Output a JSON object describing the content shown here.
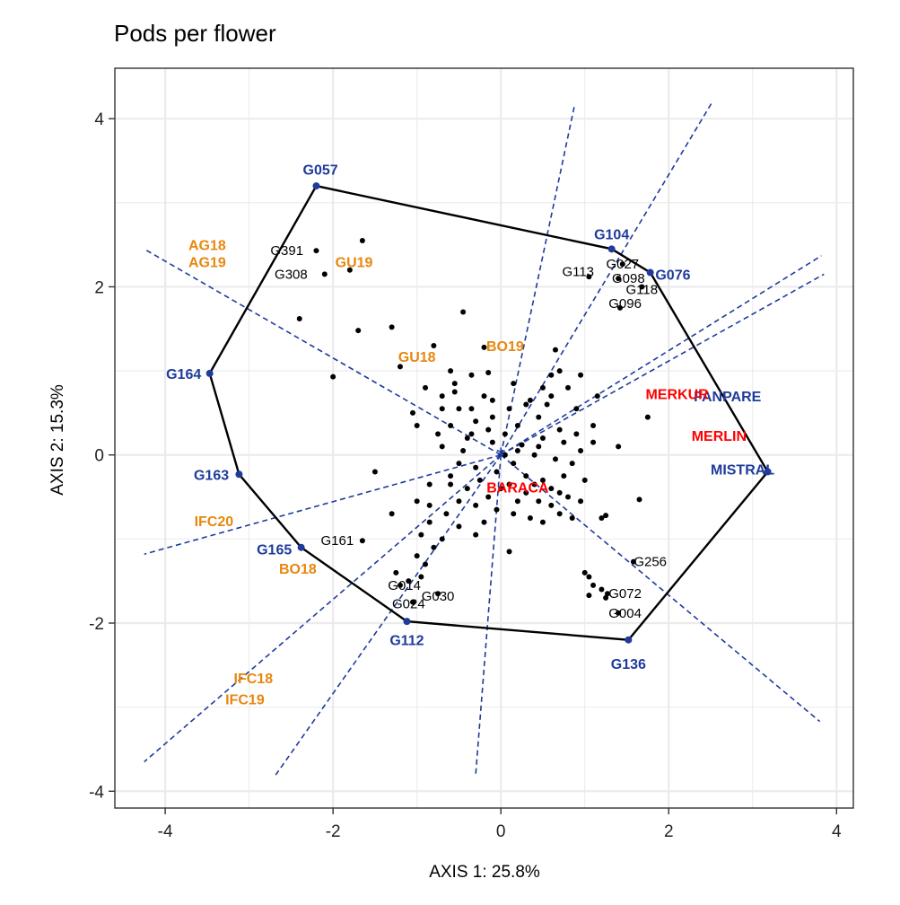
{
  "chart_data": {
    "type": "scatter",
    "title": "Pods per flower",
    "xlabel": "AXIS 1: 25.8%",
    "ylabel": "AXIS 2: 15.3%",
    "xlim": [
      -4.6,
      4.2
    ],
    "ylim": [
      -4.2,
      4.6
    ],
    "x_ticks": [
      -4,
      -2,
      0,
      2,
      4
    ],
    "y_ticks": [
      -4,
      -2,
      0,
      2,
      4
    ],
    "x_tick_labels": [
      "-4",
      "-2",
      "0",
      "2",
      "4"
    ],
    "y_tick_labels": [
      "-4",
      "-2",
      "0",
      "2",
      "4"
    ],
    "grid": true,
    "colors": {
      "vertex": "#1f3b9b",
      "environment": "#e8870e",
      "highlight_genotype": "#ff0000",
      "point": "#000000",
      "rays": "#1f3b9b"
    },
    "origin_marker": [
      0,
      0
    ],
    "hull": [
      [
        -2.2,
        3.2
      ],
      [
        1.32,
        2.45
      ],
      [
        1.78,
        2.17
      ],
      [
        3.18,
        -0.2
      ],
      [
        1.52,
        -2.2
      ],
      [
        -1.12,
        -1.98
      ],
      [
        -2.38,
        -1.1
      ],
      [
        -3.12,
        -0.23
      ],
      [
        -3.47,
        0.97
      ]
    ],
    "rays": [
      [
        [
          0,
          0
        ],
        [
          -4.25,
          2.45
        ]
      ],
      [
        [
          0,
          0
        ],
        [
          -4.25,
          -1.18
        ]
      ],
      [
        [
          0,
          0
        ],
        [
          -4.25,
          -3.65
        ]
      ],
      [
        [
          0,
          0
        ],
        [
          -2.7,
          -3.83
        ]
      ],
      [
        [
          0,
          0
        ],
        [
          -0.3,
          -3.8
        ]
      ],
      [
        [
          0,
          0
        ],
        [
          0.88,
          4.17
        ]
      ],
      [
        [
          0,
          0
        ],
        [
          2.52,
          4.2
        ]
      ],
      [
        [
          0,
          0
        ],
        [
          3.82,
          2.37
        ]
      ],
      [
        [
          0,
          0
        ],
        [
          3.85,
          2.15
        ]
      ],
      [
        [
          0,
          0
        ],
        [
          3.8,
          -3.17
        ]
      ]
    ],
    "vertex_genotypes": [
      {
        "name": "G057",
        "x": -2.2,
        "y": 3.2,
        "lx": -2.15,
        "ly": 3.4
      },
      {
        "name": "G104",
        "x": 1.32,
        "y": 2.45,
        "lx": 1.32,
        "ly": 2.63
      },
      {
        "name": "G076",
        "x": 1.78,
        "y": 2.17,
        "lx": 2.05,
        "ly": 2.15
      },
      {
        "name": "G164",
        "x": -3.47,
        "y": 0.97,
        "lx": -3.78,
        "ly": 0.97
      },
      {
        "name": "G163",
        "x": -3.12,
        "y": -0.23,
        "lx": -3.45,
        "ly": -0.23
      },
      {
        "name": "G165",
        "x": -2.38,
        "y": -1.1,
        "lx": -2.7,
        "ly": -1.12
      },
      {
        "name": "G112",
        "x": -1.12,
        "y": -1.98,
        "lx": -1.12,
        "ly": -2.2
      },
      {
        "name": "G136",
        "x": 1.52,
        "y": -2.2,
        "lx": 1.52,
        "ly": -2.48
      },
      {
        "name": "MISTRAL",
        "x": 3.18,
        "y": -0.2,
        "lx": 2.88,
        "ly": -0.17
      },
      {
        "name": "FANPARE",
        "x": 2.7,
        "y": 0.7,
        "lx": 2.7,
        "ly": 0.7
      }
    ],
    "environments": [
      {
        "name": "AG18",
        "x": -3.5,
        "y": 2.5
      },
      {
        "name": "AG19",
        "x": -3.5,
        "y": 2.3
      },
      {
        "name": "GU19",
        "x": -1.75,
        "y": 2.3
      },
      {
        "name": "GU18",
        "x": -1.0,
        "y": 1.17
      },
      {
        "name": "BO19",
        "x": 0.05,
        "y": 1.3
      },
      {
        "name": "IFC20",
        "x": -3.42,
        "y": -0.78
      },
      {
        "name": "BO18",
        "x": -2.42,
        "y": -1.35
      },
      {
        "name": "IFC18",
        "x": -2.95,
        "y": -2.65
      },
      {
        "name": "IFC19",
        "x": -3.05,
        "y": -2.9
      }
    ],
    "highlight_genotypes": [
      {
        "name": "MERKUR",
        "x": 2.1,
        "y": 0.73
      },
      {
        "name": "MERLIN",
        "x": 2.6,
        "y": 0.23
      },
      {
        "name": "BARACA",
        "x": 0.2,
        "y": -0.38
      }
    ],
    "labeled_points": [
      {
        "name": "G391",
        "x": -2.2,
        "y": 2.43,
        "lx": -2.55,
        "ly": 2.43
      },
      {
        "name": "G308",
        "x": -2.1,
        "y": 2.15,
        "lx": -2.5,
        "ly": 2.15
      },
      {
        "name": "G113",
        "x": 1.05,
        "y": 2.12,
        "lx": 0.92,
        "ly": 2.18
      },
      {
        "name": "G027",
        "x": 1.45,
        "y": 2.27,
        "lx": 1.45,
        "ly": 2.27
      },
      {
        "name": "G098",
        "x": 1.4,
        "y": 2.1,
        "lx": 1.52,
        "ly": 2.1
      },
      {
        "name": "G118",
        "x": 1.68,
        "y": 2.0,
        "lx": 1.68,
        "ly": 1.97
      },
      {
        "name": "G096",
        "x": 1.42,
        "y": 1.75,
        "lx": 1.48,
        "ly": 1.8
      },
      {
        "name": "G161",
        "x": -1.65,
        "y": -1.02,
        "lx": -1.95,
        "ly": -1.02
      },
      {
        "name": "G256",
        "x": 1.58,
        "y": -1.27,
        "lx": 1.78,
        "ly": -1.27
      },
      {
        "name": "G014",
        "x": -1.2,
        "y": -1.55,
        "lx": -1.15,
        "ly": -1.55
      },
      {
        "name": "G030",
        "x": -0.75,
        "y": -1.65,
        "lx": -0.75,
        "ly": -1.68
      },
      {
        "name": "G024",
        "x": -1.05,
        "y": -1.75,
        "lx": -1.1,
        "ly": -1.77
      },
      {
        "name": "G072",
        "x": 1.27,
        "y": -1.65,
        "lx": 1.48,
        "ly": -1.65
      },
      {
        "name": "G004",
        "x": 1.4,
        "y": -1.88,
        "lx": 1.48,
        "ly": -1.88
      }
    ],
    "points": [
      [
        -1.65,
        2.55
      ],
      [
        -1.8,
        2.2
      ],
      [
        -2.4,
        1.62
      ],
      [
        -1.7,
        1.48
      ],
      [
        -1.3,
        1.52
      ],
      [
        -1.2,
        1.05
      ],
      [
        -2.0,
        0.93
      ],
      [
        -0.8,
        1.3
      ],
      [
        -0.45,
        1.7
      ],
      [
        -0.2,
        1.28
      ],
      [
        -0.6,
        1.0
      ],
      [
        -0.35,
        0.95
      ],
      [
        -0.15,
        0.98
      ],
      [
        -0.2,
        0.7
      ],
      [
        -0.5,
        0.55
      ],
      [
        -0.7,
        0.55
      ],
      [
        -1.0,
        0.35
      ],
      [
        -0.6,
        0.35
      ],
      [
        -0.3,
        0.4
      ],
      [
        -0.1,
        0.45
      ],
      [
        -0.4,
        0.2
      ],
      [
        -0.7,
        0.1
      ],
      [
        -0.5,
        -0.1
      ],
      [
        -0.3,
        -0.15
      ],
      [
        -0.1,
        0.15
      ],
      [
        0.1,
        0.55
      ],
      [
        0.2,
        0.35
      ],
      [
        0.5,
        0.8
      ],
      [
        0.6,
        0.95
      ],
      [
        0.65,
        1.25
      ],
      [
        0.8,
        0.8
      ],
      [
        0.9,
        0.55
      ],
      [
        1.1,
        0.35
      ],
      [
        0.7,
        0.3
      ],
      [
        0.5,
        0.2
      ],
      [
        0.4,
        0.0
      ],
      [
        0.15,
        -0.1
      ],
      [
        0.3,
        -0.25
      ],
      [
        0.5,
        -0.3
      ],
      [
        0.6,
        -0.4
      ],
      [
        0.75,
        -0.25
      ],
      [
        0.8,
        -0.5
      ],
      [
        0.95,
        -0.55
      ],
      [
        0.7,
        -0.7
      ],
      [
        0.5,
        -0.8
      ],
      [
        0.35,
        -0.75
      ],
      [
        0.2,
        -0.55
      ],
      [
        0.0,
        -0.4
      ],
      [
        -0.15,
        -0.5
      ],
      [
        -0.3,
        -0.6
      ],
      [
        -0.5,
        -0.55
      ],
      [
        -0.65,
        -0.7
      ],
      [
        -0.85,
        -0.8
      ],
      [
        -0.95,
        -0.95
      ],
      [
        -0.7,
        -1.0
      ],
      [
        -0.5,
        -0.85
      ],
      [
        -0.3,
        -0.95
      ],
      [
        -1.0,
        -1.2
      ],
      [
        -0.8,
        -1.1
      ],
      [
        -0.9,
        -1.3
      ],
      [
        -1.3,
        -0.7
      ],
      [
        -1.5,
        -0.2
      ],
      [
        -1.25,
        -1.4
      ],
      [
        -1.1,
        -1.5
      ],
      [
        -0.95,
        -1.45
      ],
      [
        0.1,
        -1.15
      ],
      [
        1.2,
        -0.75
      ],
      [
        1.25,
        -0.72
      ],
      [
        1.65,
        -0.53
      ],
      [
        1.75,
        0.45
      ],
      [
        1.4,
        0.1
      ],
      [
        1.0,
        -1.4
      ],
      [
        1.05,
        -1.45
      ],
      [
        1.1,
        -1.55
      ],
      [
        1.2,
        -1.6
      ],
      [
        1.05,
        -1.67
      ],
      [
        1.25,
        -1.7
      ],
      [
        -0.25,
        -0.3
      ],
      [
        0.05,
        0.25
      ],
      [
        0.25,
        0.12
      ],
      [
        0.45,
        0.45
      ],
      [
        0.35,
        0.65
      ],
      [
        0.15,
        0.85
      ],
      [
        0.55,
        0.6
      ],
      [
        0.75,
        0.15
      ],
      [
        0.95,
        0.05
      ],
      [
        0.85,
        -0.1
      ],
      [
        0.65,
        -0.05
      ],
      [
        -0.45,
        0.05
      ],
      [
        -0.6,
        -0.25
      ],
      [
        -0.85,
        -0.35
      ],
      [
        -0.75,
        0.25
      ],
      [
        -0.9,
        0.8
      ],
      [
        -1.05,
        0.5
      ],
      [
        -0.55,
        0.75
      ],
      [
        -0.7,
        0.7
      ],
      [
        0.05,
        0.0
      ],
      [
        -0.05,
        -0.2
      ],
      [
        0.1,
        -0.35
      ],
      [
        0.3,
        -0.45
      ],
      [
        0.45,
        -0.55
      ],
      [
        0.6,
        -0.6
      ],
      [
        0.85,
        -0.75
      ],
      [
        1.15,
        0.7
      ],
      [
        0.95,
        0.95
      ],
      [
        0.7,
        1.0
      ],
      [
        0.6,
        0.7
      ],
      [
        0.3,
        0.6
      ],
      [
        -0.1,
        0.65
      ],
      [
        -0.35,
        0.55
      ],
      [
        -0.55,
        0.85
      ],
      [
        -1.0,
        -0.55
      ],
      [
        -0.85,
        -0.6
      ],
      [
        -0.6,
        -0.35
      ],
      [
        -0.4,
        -0.4
      ],
      [
        -0.2,
        -0.8
      ],
      [
        -0.05,
        -0.65
      ],
      [
        0.15,
        -0.7
      ],
      [
        0.4,
        -0.35
      ],
      [
        0.7,
        -0.45
      ],
      [
        1.0,
        -0.3
      ],
      [
        1.1,
        0.15
      ],
      [
        0.9,
        0.25
      ],
      [
        0.45,
        0.1
      ],
      [
        0.2,
        0.05
      ],
      [
        -0.15,
        0.3
      ],
      [
        -0.35,
        0.25
      ]
    ]
  }
}
